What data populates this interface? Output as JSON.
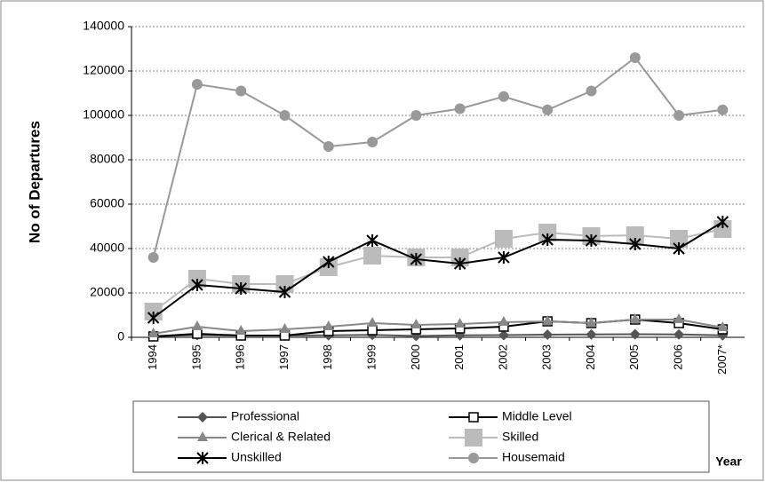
{
  "chart_data": {
    "type": "line",
    "y_label": "No of Departures",
    "x_label": "Year",
    "categories": [
      "1994",
      "1995",
      "1996",
      "1997",
      "1998",
      "1999",
      "2000",
      "2001",
      "2002",
      "2003",
      "2004",
      "2005",
      "2006",
      "2007*"
    ],
    "ylim": [
      0,
      140000
    ],
    "yticks": [
      0,
      20000,
      40000,
      60000,
      80000,
      100000,
      120000,
      140000
    ],
    "grid": true,
    "series": [
      {
        "name": "Professional",
        "color": "#555555",
        "marker": "diamond",
        "values": [
          500,
          1000,
          800,
          800,
          900,
          1100,
          600,
          900,
          1000,
          1200,
          1300,
          1400,
          1300,
          900
        ]
      },
      {
        "name": "Middle Level",
        "color": "#000000",
        "marker": "square-open",
        "values": [
          400,
          1600,
          800,
          800,
          2800,
          3200,
          3600,
          4000,
          4800,
          7200,
          6400,
          8000,
          6400,
          3600
        ]
      },
      {
        "name": "Clerical & Related",
        "color": "#888888",
        "marker": "triangle",
        "values": [
          1600,
          4800,
          2800,
          3600,
          4800,
          6400,
          5600,
          6000,
          6800,
          7200,
          6400,
          8000,
          8000,
          4400
        ]
      },
      {
        "name": "Skilled",
        "color": "#bbbbbb",
        "marker": "square-big",
        "values": [
          11600,
          26400,
          24000,
          24000,
          31600,
          36800,
          36000,
          36000,
          44400,
          47200,
          45600,
          46000,
          44400,
          48800
        ]
      },
      {
        "name": "Unskilled",
        "color": "#000000",
        "marker": "asterisk",
        "values": [
          8800,
          23600,
          22000,
          20400,
          34000,
          43600,
          35200,
          33200,
          36000,
          44000,
          43600,
          42000,
          40000,
          52000
        ]
      },
      {
        "name": "Housemaid",
        "color": "#999999",
        "marker": "circle",
        "values": [
          36000,
          114000,
          111000,
          100000,
          86000,
          88000,
          100000,
          103000,
          108500,
          102500,
          111000,
          126000,
          100000,
          102500
        ]
      }
    ]
  }
}
